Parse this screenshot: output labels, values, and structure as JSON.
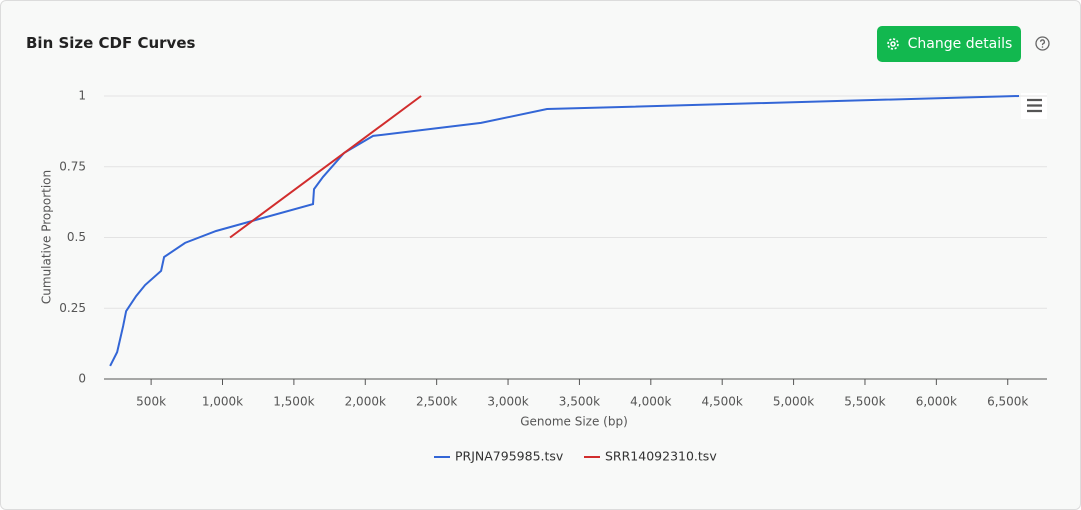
{
  "ui": {
    "button": "Change details"
  },
  "chart_data": {
    "type": "line",
    "title": "Bin Size CDF Curves",
    "x_label": "Genome Size (bp)",
    "y_label": "Cumulative Proportion",
    "xlim": [
      170000,
      6775000
    ],
    "ylim": [
      0,
      1
    ],
    "xticks": [
      {
        "value": 500000,
        "label": "500k"
      },
      {
        "value": 1000000,
        "label": "1,000k"
      },
      {
        "value": 1500000,
        "label": "1,500k"
      },
      {
        "value": 2000000,
        "label": "2,000k"
      },
      {
        "value": 2500000,
        "label": "2,500k"
      },
      {
        "value": 3000000,
        "label": "3,000k"
      },
      {
        "value": 3500000,
        "label": "3,500k"
      },
      {
        "value": 4000000,
        "label": "4,000k"
      },
      {
        "value": 4500000,
        "label": "4,500k"
      },
      {
        "value": 5000000,
        "label": "5,000k"
      },
      {
        "value": 5500000,
        "label": "5,500k"
      },
      {
        "value": 6000000,
        "label": "6,000k"
      },
      {
        "value": 6500000,
        "label": "6,500k"
      }
    ],
    "yticks": [
      0,
      0.25,
      0.5,
      0.75,
      1
    ],
    "grid": true,
    "series": [
      {
        "name": "PRJNA795985.tsv",
        "color": "#3366d6",
        "x": [
          213000,
          262000,
          304000,
          325000,
          395000,
          458000,
          570000,
          591000,
          738000,
          955000,
          1634000,
          1641000,
          1704000,
          1852000,
          2055000,
          2811000,
          3273000,
          6579000
        ],
        "values": [
          0.046,
          0.095,
          0.187,
          0.24,
          0.293,
          0.332,
          0.382,
          0.431,
          0.481,
          0.523,
          0.618,
          0.671,
          0.714,
          0.799,
          0.859,
          0.905,
          0.954,
          1.0
        ]
      },
      {
        "name": "SRR14092310.tsv",
        "color": "#d12d2d",
        "x": [
          1053000,
          2391000
        ],
        "values": [
          0.5,
          1.0
        ]
      }
    ]
  }
}
